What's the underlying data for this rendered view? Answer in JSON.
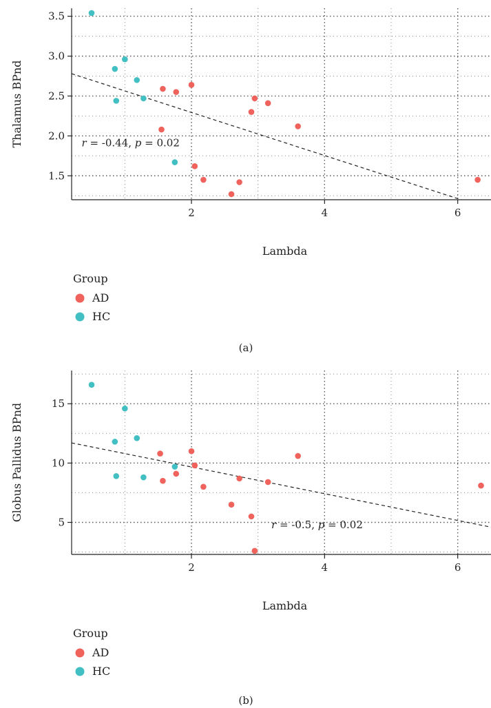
{
  "colors": {
    "AD": "#F0635C",
    "HC": "#41BFC2"
  },
  "chart_data": [
    {
      "type": "scatter",
      "caption": "(a)",
      "xlabel": "Lambda",
      "ylabel": "Thalamus BPnd",
      "xlim": [
        0.2,
        6.5
      ],
      "ylim": [
        1.2,
        3.6
      ],
      "x_ticks": [
        2,
        4,
        6
      ],
      "y_ticks": [
        1.5,
        2.0,
        2.5,
        3.0,
        3.5
      ],
      "y_tick_labels": [
        "1.5",
        "2.0",
        "2.5",
        "3.0",
        "3.5"
      ],
      "grid": true,
      "legend": {
        "title": "Group",
        "position": "bottom-left",
        "entries": [
          "AD",
          "HC"
        ]
      },
      "annotation": {
        "r": "-0.44",
        "p": "0.02",
        "x": 0.35,
        "y": 1.87
      },
      "regression_line": {
        "x": [
          0.2,
          6.2
        ],
        "y": [
          2.78,
          1.16
        ]
      },
      "series": [
        {
          "name": "HC",
          "points": [
            [
              0.5,
              3.54
            ],
            [
              0.85,
              2.84
            ],
            [
              1.0,
              2.96
            ],
            [
              0.87,
              2.44
            ],
            [
              1.18,
              2.7
            ],
            [
              1.28,
              2.47
            ],
            [
              1.75,
              1.67
            ]
          ]
        },
        {
          "name": "AD",
          "points": [
            [
              1.57,
              2.59
            ],
            [
              1.77,
              2.55
            ],
            [
              2.0,
              2.64
            ],
            [
              1.55,
              2.08
            ],
            [
              2.05,
              1.62
            ],
            [
              2.18,
              1.45
            ],
            [
              2.6,
              1.27
            ],
            [
              2.72,
              1.42
            ],
            [
              2.9,
              2.3
            ],
            [
              2.95,
              2.47
            ],
            [
              3.15,
              2.41
            ],
            [
              3.6,
              2.12
            ],
            [
              6.3,
              1.45
            ]
          ]
        }
      ]
    },
    {
      "type": "scatter",
      "caption": "(b)",
      "xlabel": "Lambda",
      "ylabel": "Globus Pallidus BPnd",
      "xlim": [
        0.2,
        6.5
      ],
      "ylim": [
        2.3,
        17.8
      ],
      "x_ticks": [
        2,
        4,
        6
      ],
      "y_ticks": [
        5,
        10,
        15
      ],
      "y_tick_labels": [
        "5",
        "10",
        "15"
      ],
      "grid": true,
      "legend": {
        "title": "Group",
        "position": "bottom-left",
        "entries": [
          "AD",
          "HC"
        ]
      },
      "annotation": {
        "r": "-0.5",
        "p": "0.02",
        "x": 3.2,
        "y": 4.5
      },
      "regression_line": {
        "x": [
          0.2,
          6.5
        ],
        "y": [
          11.7,
          4.6
        ]
      },
      "series": [
        {
          "name": "HC",
          "points": [
            [
              0.5,
              16.6
            ],
            [
              0.85,
              11.8
            ],
            [
              0.87,
              8.9
            ],
            [
              1.0,
              14.6
            ],
            [
              1.18,
              12.1
            ],
            [
              1.28,
              8.8
            ],
            [
              1.75,
              9.7
            ]
          ]
        },
        {
          "name": "AD",
          "points": [
            [
              1.53,
              10.8
            ],
            [
              1.57,
              8.5
            ],
            [
              1.77,
              9.1
            ],
            [
              2.0,
              11.0
            ],
            [
              2.05,
              9.8
            ],
            [
              2.18,
              8.0
            ],
            [
              2.6,
              6.5
            ],
            [
              2.72,
              8.7
            ],
            [
              2.9,
              5.5
            ],
            [
              2.95,
              2.6
            ],
            [
              3.15,
              8.4
            ],
            [
              3.6,
              10.6
            ],
            [
              6.35,
              8.1
            ]
          ]
        }
      ]
    }
  ]
}
